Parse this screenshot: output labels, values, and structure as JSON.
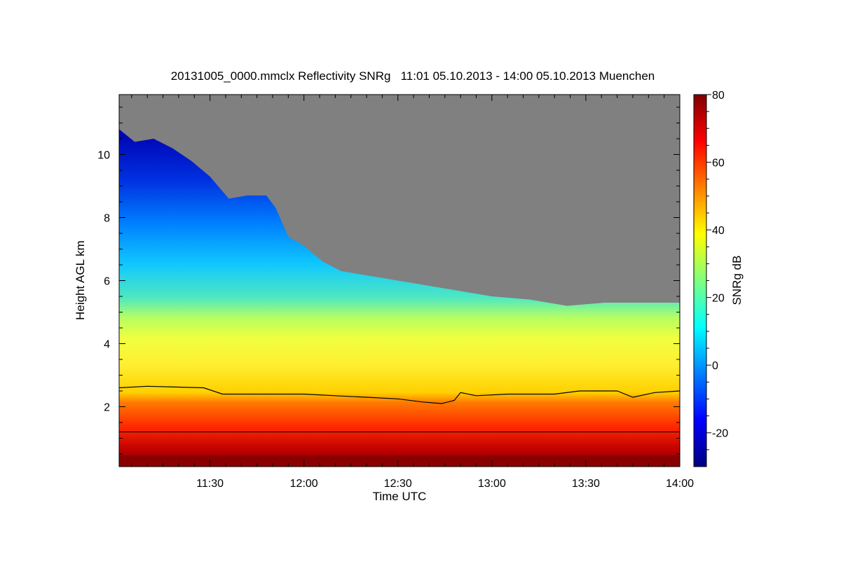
{
  "chart_data": {
    "type": "heatmap",
    "title": "20131005_0000.mmclx Reflectivity SNRg   11:01 05.10.2013 - 14:00 05.10.2013 Muenchen",
    "xlabel": "Time UTC",
    "ylabel": "Height AGL km",
    "colorbar_label": "SNRg dB",
    "xlim": [
      "11:01",
      "14:00"
    ],
    "ylim": [
      0.1,
      11.9
    ],
    "x_ticks": [
      "11:30",
      "12:00",
      "12:30",
      "13:00",
      "13:30",
      "14:00"
    ],
    "x_tick_minutes": [
      30,
      60,
      90,
      120,
      150,
      180
    ],
    "y_ticks": [
      2,
      4,
      6,
      8,
      10
    ],
    "colorbar_range": [
      -30,
      80
    ],
    "colorbar_ticks": [
      -20,
      0,
      20,
      40,
      60,
      80
    ],
    "no_signal_color": "#808080",
    "colormap": [
      "#00007f",
      "#0000ff",
      "#007fff",
      "#00ffff",
      "#7fff7f",
      "#ffff00",
      "#ff7f00",
      "#ff0000",
      "#7f0000"
    ],
    "echo_top_km": [
      {
        "t": 1,
        "h": 10.8
      },
      {
        "t": 6,
        "h": 10.4
      },
      {
        "t": 12,
        "h": 10.5
      },
      {
        "t": 18,
        "h": 10.2
      },
      {
        "t": 24,
        "h": 9.8
      },
      {
        "t": 30,
        "h": 9.3
      },
      {
        "t": 36,
        "h": 8.6
      },
      {
        "t": 42,
        "h": 8.7
      },
      {
        "t": 48,
        "h": 8.7
      },
      {
        "t": 51,
        "h": 8.3
      },
      {
        "t": 55,
        "h": 7.4
      },
      {
        "t": 60,
        "h": 7.1
      },
      {
        "t": 66,
        "h": 6.6
      },
      {
        "t": 72,
        "h": 6.3
      },
      {
        "t": 78,
        "h": 6.2
      },
      {
        "t": 84,
        "h": 6.1
      },
      {
        "t": 90,
        "h": 6.0
      },
      {
        "t": 96,
        "h": 5.9
      },
      {
        "t": 102,
        "h": 5.8
      },
      {
        "t": 108,
        "h": 5.7
      },
      {
        "t": 114,
        "h": 5.6
      },
      {
        "t": 120,
        "h": 5.5
      },
      {
        "t": 132,
        "h": 5.4
      },
      {
        "t": 144,
        "h": 5.2
      },
      {
        "t": 156,
        "h": 5.3
      },
      {
        "t": 168,
        "h": 5.3
      },
      {
        "t": 180,
        "h": 5.3
      }
    ],
    "melting_layer_km": [
      {
        "t": 1,
        "h": 2.6
      },
      {
        "t": 10,
        "h": 2.65
      },
      {
        "t": 28,
        "h": 2.6
      },
      {
        "t": 34,
        "h": 2.4
      },
      {
        "t": 50,
        "h": 2.4
      },
      {
        "t": 60,
        "h": 2.4
      },
      {
        "t": 70,
        "h": 2.35
      },
      {
        "t": 80,
        "h": 2.3
      },
      {
        "t": 90,
        "h": 2.25
      },
      {
        "t": 98,
        "h": 2.15
      },
      {
        "t": 104,
        "h": 2.1
      },
      {
        "t": 108,
        "h": 2.2
      },
      {
        "t": 110,
        "h": 2.45
      },
      {
        "t": 115,
        "h": 2.35
      },
      {
        "t": 125,
        "h": 2.4
      },
      {
        "t": 140,
        "h": 2.4
      },
      {
        "t": 148,
        "h": 2.5
      },
      {
        "t": 160,
        "h": 2.5
      },
      {
        "t": 165,
        "h": 2.3
      },
      {
        "t": 172,
        "h": 2.45
      },
      {
        "t": 180,
        "h": 2.5
      }
    ],
    "reference_line_km": 1.2
  }
}
